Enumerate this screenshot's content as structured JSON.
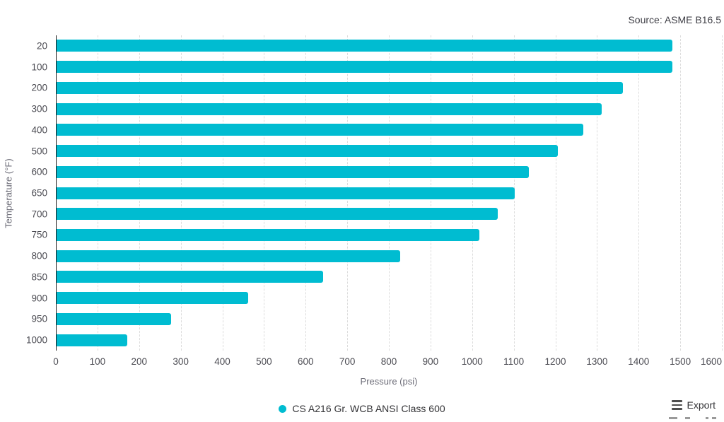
{
  "source": "Source: ASME B16.5",
  "chart_data": {
    "type": "bar",
    "orientation": "horizontal",
    "title": "",
    "categories": [
      "20",
      "100",
      "200",
      "300",
      "400",
      "500",
      "600",
      "650",
      "700",
      "750",
      "800",
      "850",
      "900",
      "950",
      "1000"
    ],
    "series": [
      {
        "name": "CS A216 Gr. WCB ANSI Class 600",
        "values": [
          1480,
          1480,
          1360,
          1310,
          1265,
          1205,
          1135,
          1100,
          1060,
          1015,
          825,
          640,
          460,
          275,
          170
        ],
        "color": "#00BCD1"
      }
    ],
    "xlabel": "Pressure (psi)",
    "ylabel": "Temperature (°F)",
    "xlim": [
      0,
      1600
    ],
    "x_ticks": [
      0,
      100,
      200,
      300,
      400,
      500,
      600,
      700,
      800,
      900,
      1000,
      1100,
      1200,
      1300,
      1400,
      1500,
      1600
    ],
    "grid": "vertical-dashed",
    "legend_position": "bottom-center"
  },
  "legend": {
    "series_label": "CS A216 Gr. WCB ANSI Class 600",
    "marker_color": "#00BCD1"
  },
  "toolbar": {
    "export_label": "Export"
  }
}
